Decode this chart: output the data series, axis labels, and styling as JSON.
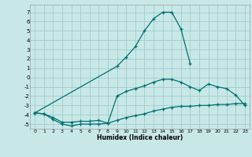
{
  "xlabel": "Humidex (Indice chaleur)",
  "bg_color": "#c8e8e8",
  "grid_color": "#a8cece",
  "line_color": "#007070",
  "xlim": [
    -0.5,
    23.5
  ],
  "ylim": [
    -5.5,
    7.8
  ],
  "yticks": [
    -5,
    -4,
    -3,
    -2,
    -1,
    0,
    1,
    2,
    3,
    4,
    5,
    6,
    7
  ],
  "xticks": [
    0,
    1,
    2,
    3,
    4,
    5,
    6,
    7,
    8,
    9,
    10,
    11,
    12,
    13,
    14,
    15,
    16,
    17,
    18,
    19,
    20,
    21,
    22,
    23
  ],
  "line1_x": [
    0,
    1,
    2,
    3,
    4,
    5,
    6,
    7,
    8,
    9,
    10,
    11,
    12,
    13,
    14,
    15,
    16,
    17,
    18,
    19,
    20,
    21,
    22,
    23
  ],
  "line1_y": [
    -3.8,
    -3.9,
    -4.5,
    -5.0,
    -5.2,
    -5.0,
    -5.0,
    -5.0,
    -4.9,
    -4.6,
    -4.3,
    -4.1,
    -3.9,
    -3.6,
    -3.4,
    -3.2,
    -3.1,
    -3.1,
    -3.0,
    -3.0,
    -2.9,
    -2.9,
    -2.8,
    -2.8
  ],
  "line2_x": [
    0,
    1,
    2,
    3,
    4,
    5,
    6,
    7,
    8,
    9,
    10,
    11,
    12,
    13,
    14,
    15,
    16,
    17,
    18,
    19,
    20,
    21,
    22,
    23
  ],
  "line2_y": [
    -3.8,
    -3.9,
    -4.3,
    -4.8,
    -4.8,
    -4.7,
    -4.7,
    -4.6,
    -4.9,
    -2.0,
    -1.5,
    -1.2,
    -0.9,
    -0.5,
    -0.2,
    -0.2,
    -0.5,
    -1.0,
    -1.4,
    -0.7,
    -1.0,
    -1.2,
    -1.9,
    -3.0
  ],
  "line3_x": [
    0,
    9,
    10,
    11,
    12,
    13,
    14,
    15,
    16,
    17
  ],
  "line3_y": [
    -3.8,
    1.2,
    2.2,
    3.3,
    5.0,
    6.3,
    7.0,
    7.0,
    5.2,
    1.5
  ]
}
